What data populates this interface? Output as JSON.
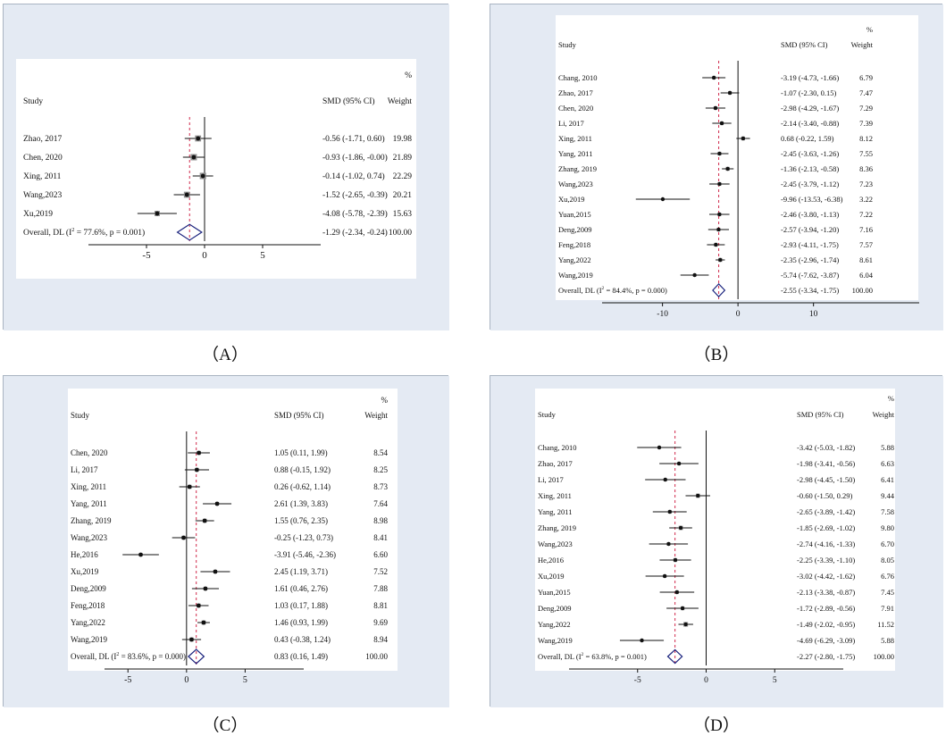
{
  "colors": {
    "panel_bg": "#e4eaf3",
    "plot_bg": "#ffffff",
    "border": "#a9b4c2",
    "ref_line": "#d0284a",
    "diamond": "#1a237e",
    "line": "#111111"
  },
  "header": {
    "pct": "%",
    "study": "Study",
    "smd": "SMD (95% CI)",
    "weight": "Weight"
  },
  "chart_data": [
    {
      "type": "forest",
      "caption": "（A）",
      "xlim": [
        -10,
        10
      ],
      "ticks": [
        -5,
        0,
        5
      ],
      "tick_labels": [
        "-5",
        "0",
        "5"
      ],
      "overall_line": -1.29,
      "studies": [
        {
          "label": "Zhao, 2017",
          "smd": -0.56,
          "lo": -1.71,
          "hi": 0.6,
          "ci": "-0.56 (-1.71, 0.60)",
          "weight": "19.98"
        },
        {
          "label": "Chen, 2020",
          "smd": -0.93,
          "lo": -1.86,
          "hi": -0.0,
          "ci": "-0.93 (-1.86, -0.00)",
          "weight": "21.89"
        },
        {
          "label": "Xing, 2011",
          "smd": -0.14,
          "lo": -1.02,
          "hi": 0.74,
          "ci": "-0.14 (-1.02, 0.74)",
          "weight": "22.29"
        },
        {
          "label": "Wang,2023",
          "smd": -1.52,
          "lo": -2.65,
          "hi": -0.39,
          "ci": "-1.52 (-2.65, -0.39)",
          "weight": "20.21"
        },
        {
          "label": "Xu,2019",
          "smd": -4.08,
          "lo": -5.78,
          "hi": -2.39,
          "ci": "-4.08 (-5.78, -2.39)",
          "weight": "15.63"
        }
      ],
      "overall": {
        "label_pre": "Overall, DL (I",
        "sup": "2",
        "label_post": " = 77.6%, p = 0.001)",
        "smd": -1.29,
        "lo": -2.34,
        "hi": -0.24,
        "ci": "-1.29 (-2.34, -0.24)",
        "weight": "100.00"
      }
    },
    {
      "type": "forest",
      "caption": "（B）",
      "xlim": [
        -18,
        24
      ],
      "ticks": [
        -10,
        0,
        10
      ],
      "tick_labels": [
        "-10",
        "0",
        "10"
      ],
      "overall_line": -2.55,
      "studies": [
        {
          "label": "Chang, 2010",
          "smd": -3.19,
          "lo": -4.73,
          "hi": -1.66,
          "ci": "-3.19 (-4.73, -1.66)",
          "weight": "6.79"
        },
        {
          "label": "Zhao, 2017",
          "smd": -1.07,
          "lo": -2.3,
          "hi": 0.15,
          "ci": "-1.07 (-2.30, 0.15)",
          "weight": "7.47"
        },
        {
          "label": "Chen, 2020",
          "smd": -2.98,
          "lo": -4.29,
          "hi": -1.67,
          "ci": "-2.98 (-4.29, -1.67)",
          "weight": "7.29"
        },
        {
          "label": "Li, 2017",
          "smd": -2.14,
          "lo": -3.4,
          "hi": -0.88,
          "ci": "-2.14 (-3.40, -0.88)",
          "weight": "7.39"
        },
        {
          "label": "Xing, 2011",
          "smd": 0.68,
          "lo": -0.22,
          "hi": 1.59,
          "ci": "0.68 (-0.22, 1.59)",
          "weight": "8.12"
        },
        {
          "label": "Yang, 2011",
          "smd": -2.45,
          "lo": -3.63,
          "hi": -1.26,
          "ci": "-2.45 (-3.63, -1.26)",
          "weight": "7.55"
        },
        {
          "label": "Zhang, 2019",
          "smd": -1.36,
          "lo": -2.13,
          "hi": -0.58,
          "ci": "-1.36 (-2.13, -0.58)",
          "weight": "8.36"
        },
        {
          "label": "Wang,2023",
          "smd": -2.45,
          "lo": -3.79,
          "hi": -1.12,
          "ci": "-2.45 (-3.79, -1.12)",
          "weight": "7.23"
        },
        {
          "label": "Xu,2019",
          "smd": -9.96,
          "lo": -13.53,
          "hi": -6.38,
          "ci": "-9.96 (-13.53, -6.38)",
          "weight": "3.22"
        },
        {
          "label": "Yuan,2015",
          "smd": -2.46,
          "lo": -3.8,
          "hi": -1.13,
          "ci": "-2.46 (-3.80, -1.13)",
          "weight": "7.22"
        },
        {
          "label": "Deng,2009",
          "smd": -2.57,
          "lo": -3.94,
          "hi": -1.2,
          "ci": "-2.57 (-3.94, -1.20)",
          "weight": "7.16"
        },
        {
          "label": "Feng,2018",
          "smd": -2.93,
          "lo": -4.11,
          "hi": -1.75,
          "ci": "-2.93 (-4.11, -1.75)",
          "weight": "7.57"
        },
        {
          "label": "Yang,2022",
          "smd": -2.35,
          "lo": -2.96,
          "hi": -1.74,
          "ci": "-2.35 (-2.96, -1.74)",
          "weight": "8.61"
        },
        {
          "label": "Wang,2019",
          "smd": -5.74,
          "lo": -7.62,
          "hi": -3.87,
          "ci": "-5.74 (-7.62, -3.87)",
          "weight": "6.04"
        }
      ],
      "overall": {
        "label_pre": "Overall, DL (I",
        "sup": "2",
        "label_post": " = 84.4%, p = 0.000)",
        "smd": -2.55,
        "lo": -3.34,
        "hi": -1.75,
        "ci": "-2.55 (-3.34, -1.75)",
        "weight": "100.00"
      }
    },
    {
      "type": "forest",
      "caption": "（C）",
      "xlim": [
        -7,
        10
      ],
      "ticks": [
        -5,
        0,
        5
      ],
      "tick_labels": [
        "-5",
        "0",
        "5"
      ],
      "overall_line": 0.83,
      "studies": [
        {
          "label": "Chen, 2020",
          "smd": 1.05,
          "lo": 0.11,
          "hi": 1.99,
          "ci": "1.05 (0.11, 1.99)",
          "weight": "8.54"
        },
        {
          "label": "Li, 2017",
          "smd": 0.88,
          "lo": -0.15,
          "hi": 1.92,
          "ci": "0.88 (-0.15, 1.92)",
          "weight": "8.25"
        },
        {
          "label": "Xing, 2011",
          "smd": 0.26,
          "lo": -0.62,
          "hi": 1.14,
          "ci": "0.26 (-0.62, 1.14)",
          "weight": "8.73"
        },
        {
          "label": "Yang, 2011",
          "smd": 2.61,
          "lo": 1.39,
          "hi": 3.83,
          "ci": "2.61 (1.39, 3.83)",
          "weight": "7.64"
        },
        {
          "label": "Zhang, 2019",
          "smd": 1.55,
          "lo": 0.76,
          "hi": 2.35,
          "ci": "1.55 (0.76, 2.35)",
          "weight": "8.98"
        },
        {
          "label": "Wang,2023",
          "smd": -0.25,
          "lo": -1.23,
          "hi": 0.73,
          "ci": "-0.25 (-1.23, 0.73)",
          "weight": "8.41"
        },
        {
          "label": "He,2016",
          "smd": -3.91,
          "lo": -5.46,
          "hi": -2.36,
          "ci": "-3.91 (-5.46, -2.36)",
          "weight": "6.60"
        },
        {
          "label": "Xu,2019",
          "smd": 2.45,
          "lo": 1.19,
          "hi": 3.71,
          "ci": "2.45 (1.19, 3.71)",
          "weight": "7.52"
        },
        {
          "label": "Deng,2009",
          "smd": 1.61,
          "lo": 0.46,
          "hi": 2.76,
          "ci": "1.61 (0.46, 2.76)",
          "weight": "7.88"
        },
        {
          "label": "Feng,2018",
          "smd": 1.03,
          "lo": 0.17,
          "hi": 1.88,
          "ci": "1.03 (0.17, 1.88)",
          "weight": "8.81"
        },
        {
          "label": "Yang,2022",
          "smd": 1.46,
          "lo": 0.93,
          "hi": 1.99,
          "ci": "1.46 (0.93, 1.99)",
          "weight": "9.69"
        },
        {
          "label": "Wang,2019",
          "smd": 0.43,
          "lo": -0.38,
          "hi": 1.24,
          "ci": "0.43 (-0.38, 1.24)",
          "weight": "8.94"
        }
      ],
      "overall": {
        "label_pre": "Overall, DL (I",
        "sup": "2",
        "label_post": " = 83.6%, p = 0.000)",
        "smd": 0.83,
        "lo": 0.16,
        "hi": 1.49,
        "ci": "0.83 (0.16, 1.49)",
        "weight": "100.00"
      }
    },
    {
      "type": "forest",
      "caption": "（D）",
      "xlim": [
        -10,
        10
      ],
      "ticks": [
        -5,
        0,
        5
      ],
      "tick_labels": [
        "-5",
        "0",
        "5"
      ],
      "overall_line": -2.27,
      "studies": [
        {
          "label": "Chang, 2010",
          "smd": -3.42,
          "lo": -5.03,
          "hi": -1.82,
          "ci": "-3.42 (-5.03, -1.82)",
          "weight": "5.88"
        },
        {
          "label": "Zhao, 2017",
          "smd": -1.98,
          "lo": -3.41,
          "hi": -0.56,
          "ci": "-1.98 (-3.41, -0.56)",
          "weight": "6.63"
        },
        {
          "label": "Li, 2017",
          "smd": -2.98,
          "lo": -4.45,
          "hi": -1.5,
          "ci": "-2.98 (-4.45, -1.50)",
          "weight": "6.41"
        },
        {
          "label": "Xing, 2011",
          "smd": -0.6,
          "lo": -1.5,
          "hi": 0.29,
          "ci": "-0.60 (-1.50, 0.29)",
          "weight": "9.44"
        },
        {
          "label": "Yang, 2011",
          "smd": -2.65,
          "lo": -3.89,
          "hi": -1.42,
          "ci": "-2.65 (-3.89, -1.42)",
          "weight": "7.58"
        },
        {
          "label": "Zhang, 2019",
          "smd": -1.85,
          "lo": -2.69,
          "hi": -1.02,
          "ci": "-1.85 (-2.69, -1.02)",
          "weight": "9.80"
        },
        {
          "label": "Wang,2023",
          "smd": -2.74,
          "lo": -4.16,
          "hi": -1.33,
          "ci": "-2.74 (-4.16, -1.33)",
          "weight": "6.70"
        },
        {
          "label": "He,2016",
          "smd": -2.25,
          "lo": -3.39,
          "hi": -1.1,
          "ci": "-2.25 (-3.39, -1.10)",
          "weight": "8.05"
        },
        {
          "label": "Xu,2019",
          "smd": -3.02,
          "lo": -4.42,
          "hi": -1.62,
          "ci": "-3.02 (-4.42, -1.62)",
          "weight": "6.76"
        },
        {
          "label": "Yuan,2015",
          "smd": -2.13,
          "lo": -3.38,
          "hi": -0.87,
          "ci": "-2.13 (-3.38, -0.87)",
          "weight": "7.45"
        },
        {
          "label": "Deng,2009",
          "smd": -1.72,
          "lo": -2.89,
          "hi": -0.56,
          "ci": "-1.72 (-2.89, -0.56)",
          "weight": "7.91"
        },
        {
          "label": "Yang,2022",
          "smd": -1.49,
          "lo": -2.02,
          "hi": -0.95,
          "ci": "-1.49 (-2.02, -0.95)",
          "weight": "11.52"
        },
        {
          "label": "Wang,2019",
          "smd": -4.69,
          "lo": -6.29,
          "hi": -3.09,
          "ci": "-4.69 (-6.29, -3.09)",
          "weight": "5.88"
        }
      ],
      "overall": {
        "label_pre": "Overall, DL (I",
        "sup": "2",
        "label_post": " = 63.8%, p = 0.001)",
        "smd": -2.27,
        "lo": -2.8,
        "hi": -1.75,
        "ci": "-2.27 (-2.80, -1.75)",
        "weight": "100.00"
      }
    }
  ]
}
